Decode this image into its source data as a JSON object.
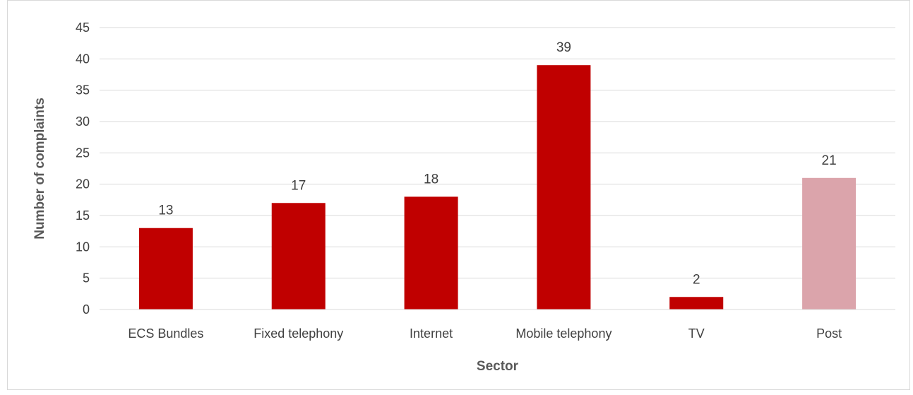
{
  "chart_data": {
    "type": "bar",
    "title": "",
    "xlabel": "Sector",
    "ylabel": "Number of complaints",
    "categories": [
      "ECS Bundles",
      "Fixed telephony",
      "Internet",
      "Mobile telephony",
      "TV",
      "Post"
    ],
    "values": [
      13,
      17,
      18,
      39,
      2,
      21
    ],
    "data_labels": [
      "13",
      "17",
      "18",
      "39",
      "2",
      "21"
    ],
    "ylim": [
      0,
      45
    ],
    "yticks": [
      "0",
      "5",
      "10",
      "15",
      "20",
      "25",
      "30",
      "35",
      "40",
      "45"
    ],
    "grid": true,
    "legend": "none",
    "colors": [
      "#c00000",
      "#c00000",
      "#c00000",
      "#c00000",
      "#c00000",
      "#dba4ab"
    ],
    "gridline_color": "#d9d9d9"
  }
}
